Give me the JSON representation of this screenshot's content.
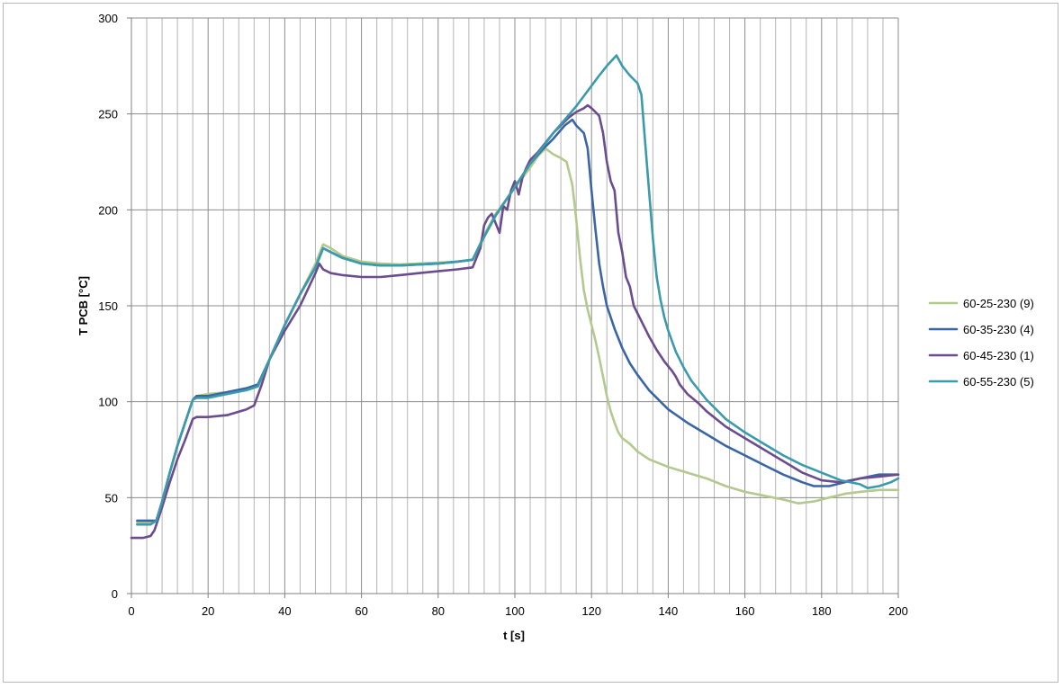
{
  "chart_data": {
    "type": "line",
    "title": "",
    "xlabel": "t [s]",
    "ylabel": "T PCB [°C]",
    "xlim": [
      0,
      200
    ],
    "ylim": [
      0,
      300
    ],
    "x_major_step": 20,
    "x_minor_step": 4,
    "y_step": 50,
    "grid": true,
    "legend_position": "right",
    "series": [
      {
        "name": "60-25-230 (9)",
        "color": "#b4c98e",
        "points": [
          [
            1.5,
            37
          ],
          [
            5,
            37
          ],
          [
            6.5,
            38
          ],
          [
            8,
            48
          ],
          [
            10,
            63
          ],
          [
            12,
            77
          ],
          [
            14,
            89
          ],
          [
            16,
            101
          ],
          [
            17,
            103
          ],
          [
            20,
            104
          ],
          [
            25,
            105
          ],
          [
            30,
            107
          ],
          [
            33,
            109
          ],
          [
            36,
            122
          ],
          [
            40,
            140
          ],
          [
            44,
            156
          ],
          [
            48,
            172
          ],
          [
            50,
            182
          ],
          [
            52,
            180
          ],
          [
            55,
            176
          ],
          [
            60,
            173
          ],
          [
            65,
            172
          ],
          [
            70,
            171.5
          ],
          [
            75,
            172
          ],
          [
            80,
            172.5
          ],
          [
            85,
            173
          ],
          [
            89,
            174
          ],
          [
            92,
            187
          ],
          [
            95,
            198
          ],
          [
            98,
            206
          ],
          [
            101,
            214
          ],
          [
            104,
            222
          ],
          [
            106,
            228
          ],
          [
            108,
            232
          ],
          [
            110,
            229
          ],
          [
            112,
            227
          ],
          [
            113.5,
            225
          ],
          [
            115,
            213
          ],
          [
            116,
            195
          ],
          [
            117,
            175
          ],
          [
            118,
            158
          ],
          [
            119,
            148
          ],
          [
            120,
            140
          ],
          [
            121,
            132
          ],
          [
            122,
            123
          ],
          [
            123,
            113
          ],
          [
            124,
            103
          ],
          [
            125,
            95
          ],
          [
            126,
            89
          ],
          [
            127,
            84
          ],
          [
            128,
            81
          ],
          [
            130,
            78
          ],
          [
            132,
            74
          ],
          [
            135,
            70
          ],
          [
            140,
            66
          ],
          [
            145,
            63
          ],
          [
            150,
            60
          ],
          [
            155,
            56
          ],
          [
            160,
            53
          ],
          [
            165,
            51
          ],
          [
            170,
            49
          ],
          [
            174,
            47
          ],
          [
            178,
            48
          ],
          [
            182,
            50
          ],
          [
            186,
            52
          ],
          [
            190,
            53
          ],
          [
            195,
            54
          ],
          [
            200,
            54
          ]
        ]
      },
      {
        "name": "60-35-230 (4)",
        "color": "#3a66a6",
        "points": [
          [
            1.5,
            38
          ],
          [
            5,
            38
          ],
          [
            6.5,
            38
          ],
          [
            8,
            48
          ],
          [
            10,
            63
          ],
          [
            12,
            77
          ],
          [
            14,
            89
          ],
          [
            16,
            101
          ],
          [
            17,
            103
          ],
          [
            20,
            103
          ],
          [
            25,
            105
          ],
          [
            30,
            107
          ],
          [
            33,
            109
          ],
          [
            36,
            122
          ],
          [
            40,
            140
          ],
          [
            44,
            156
          ],
          [
            48,
            170
          ],
          [
            50,
            180
          ],
          [
            52,
            178
          ],
          [
            55,
            175
          ],
          [
            60,
            172
          ],
          [
            65,
            171
          ],
          [
            70,
            171
          ],
          [
            75,
            171.5
          ],
          [
            80,
            172
          ],
          [
            85,
            173
          ],
          [
            89,
            174
          ],
          [
            92,
            186
          ],
          [
            95,
            197
          ],
          [
            98,
            206
          ],
          [
            101,
            215
          ],
          [
            104,
            224
          ],
          [
            107,
            231
          ],
          [
            110,
            237
          ],
          [
            113,
            244
          ],
          [
            115,
            247
          ],
          [
            116,
            244
          ],
          [
            118,
            240
          ],
          [
            119,
            232
          ],
          [
            120,
            210
          ],
          [
            121,
            190
          ],
          [
            122,
            172
          ],
          [
            123,
            160
          ],
          [
            124,
            150
          ],
          [
            126,
            138
          ],
          [
            128,
            128
          ],
          [
            130,
            120
          ],
          [
            132,
            114
          ],
          [
            135,
            106
          ],
          [
            138,
            100
          ],
          [
            140,
            96
          ],
          [
            145,
            89
          ],
          [
            150,
            83
          ],
          [
            155,
            77
          ],
          [
            160,
            72
          ],
          [
            165,
            67
          ],
          [
            170,
            62
          ],
          [
            175,
            58
          ],
          [
            178,
            56
          ],
          [
            182,
            56
          ],
          [
            186,
            58
          ],
          [
            190,
            60
          ],
          [
            195,
            62
          ],
          [
            200,
            62
          ]
        ]
      },
      {
        "name": "60-45-230 (1)",
        "color": "#6b4c8e",
        "points": [
          [
            0,
            29
          ],
          [
            3,
            29
          ],
          [
            5,
            30
          ],
          [
            6,
            33
          ],
          [
            8,
            45
          ],
          [
            10,
            58
          ],
          [
            12,
            70
          ],
          [
            14,
            80
          ],
          [
            16,
            91
          ],
          [
            17,
            92
          ],
          [
            20,
            92
          ],
          [
            25,
            93
          ],
          [
            30,
            96
          ],
          [
            32,
            98
          ],
          [
            34,
            109
          ],
          [
            36,
            122
          ],
          [
            40,
            137
          ],
          [
            44,
            150
          ],
          [
            48,
            167
          ],
          [
            49,
            172
          ],
          [
            50,
            169
          ],
          [
            52,
            167
          ],
          [
            55,
            166
          ],
          [
            60,
            165
          ],
          [
            65,
            165
          ],
          [
            70,
            166
          ],
          [
            75,
            167
          ],
          [
            80,
            168
          ],
          [
            85,
            169
          ],
          [
            89,
            170
          ],
          [
            91,
            180
          ],
          [
            92,
            192
          ],
          [
            93,
            196
          ],
          [
            94,
            198
          ],
          [
            95,
            193
          ],
          [
            96,
            188
          ],
          [
            97,
            202
          ],
          [
            98,
            200
          ],
          [
            99,
            210
          ],
          [
            100,
            215
          ],
          [
            101,
            208
          ],
          [
            102,
            217
          ],
          [
            103,
            222
          ],
          [
            104,
            226
          ],
          [
            106,
            230
          ],
          [
            108,
            235
          ],
          [
            110,
            240
          ],
          [
            112,
            244
          ],
          [
            114,
            248
          ],
          [
            116,
            251
          ],
          [
            118,
            253
          ],
          [
            119,
            254.5
          ],
          [
            120,
            253
          ],
          [
            121,
            251
          ],
          [
            122,
            249
          ],
          [
            123,
            240
          ],
          [
            124,
            225
          ],
          [
            125,
            215
          ],
          [
            126,
            210
          ],
          [
            127,
            188
          ],
          [
            128,
            178
          ],
          [
            129,
            165
          ],
          [
            130,
            160
          ],
          [
            131,
            150
          ],
          [
            133,
            142
          ],
          [
            135,
            134
          ],
          [
            137,
            127
          ],
          [
            139,
            121
          ],
          [
            141,
            116
          ],
          [
            142,
            113
          ],
          [
            143,
            109
          ],
          [
            145,
            104
          ],
          [
            148,
            99
          ],
          [
            150,
            95
          ],
          [
            155,
            87
          ],
          [
            160,
            81
          ],
          [
            165,
            75
          ],
          [
            170,
            69
          ],
          [
            175,
            63
          ],
          [
            180,
            59
          ],
          [
            185,
            58
          ],
          [
            190,
            60
          ],
          [
            195,
            61
          ],
          [
            200,
            62
          ]
        ]
      },
      {
        "name": "60-55-230 (5)",
        "color": "#3a9bab",
        "points": [
          [
            1.5,
            36
          ],
          [
            5,
            36
          ],
          [
            6.5,
            38
          ],
          [
            8,
            48
          ],
          [
            10,
            63
          ],
          [
            12,
            77
          ],
          [
            14,
            89
          ],
          [
            16,
            101
          ],
          [
            17,
            102
          ],
          [
            20,
            102
          ],
          [
            25,
            104
          ],
          [
            30,
            106
          ],
          [
            33,
            108
          ],
          [
            36,
            122
          ],
          [
            40,
            140
          ],
          [
            44,
            156
          ],
          [
            48,
            170
          ],
          [
            50,
            180
          ],
          [
            52,
            178
          ],
          [
            55,
            175
          ],
          [
            60,
            172
          ],
          [
            65,
            171
          ],
          [
            70,
            171
          ],
          [
            75,
            171.5
          ],
          [
            80,
            172
          ],
          [
            85,
            173
          ],
          [
            89,
            174
          ],
          [
            92,
            186
          ],
          [
            95,
            197
          ],
          [
            98,
            206
          ],
          [
            101,
            215
          ],
          [
            104,
            224
          ],
          [
            107,
            232
          ],
          [
            110,
            240
          ],
          [
            113,
            247
          ],
          [
            116,
            254
          ],
          [
            119,
            262
          ],
          [
            122,
            270
          ],
          [
            124,
            275
          ],
          [
            126.5,
            280.5
          ],
          [
            128,
            275
          ],
          [
            130,
            270
          ],
          [
            132,
            266
          ],
          [
            133,
            260
          ],
          [
            134,
            235
          ],
          [
            135,
            210
          ],
          [
            136,
            185
          ],
          [
            137,
            165
          ],
          [
            138,
            153
          ],
          [
            139,
            144
          ],
          [
            140,
            137
          ],
          [
            142,
            126
          ],
          [
            144,
            118
          ],
          [
            146,
            111
          ],
          [
            150,
            101
          ],
          [
            155,
            91
          ],
          [
            160,
            84
          ],
          [
            165,
            78
          ],
          [
            170,
            72
          ],
          [
            175,
            67
          ],
          [
            180,
            63
          ],
          [
            185,
            59
          ],
          [
            190,
            57
          ],
          [
            192,
            55
          ],
          [
            195,
            56
          ],
          [
            198,
            58
          ],
          [
            200,
            60
          ]
        ]
      }
    ]
  }
}
